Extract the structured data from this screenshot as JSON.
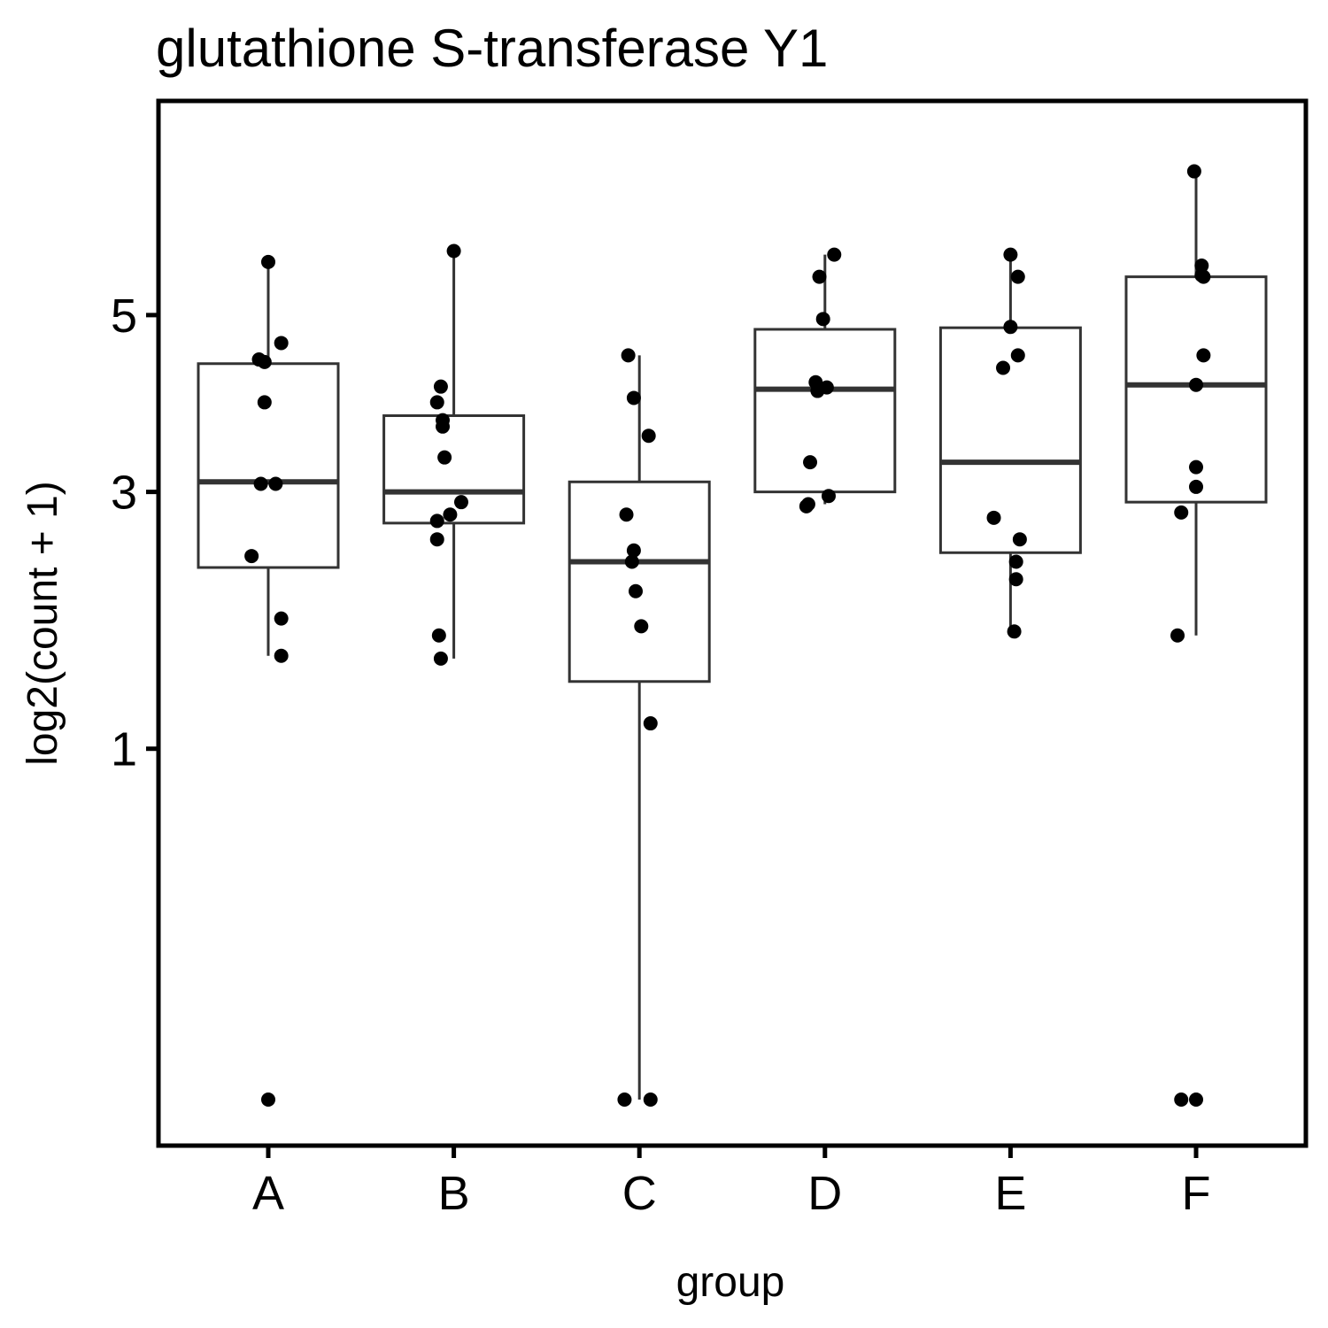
{
  "chart_data": {
    "type": "boxplot",
    "title": "glutathione S-transferase Y1",
    "xlabel": "group",
    "ylabel": "log2(count + 1)",
    "y_scale": "sqrt",
    "ylim": [
      0,
      7.4
    ],
    "y_ticks": [
      1,
      3,
      5
    ],
    "grid": false,
    "legend": "none",
    "categories": [
      "A",
      "B",
      "C",
      "D",
      "E",
      "F"
    ],
    "boxes": [
      {
        "group": "A",
        "whisker_low": 1.6,
        "q1": 2.3,
        "median": 3.1,
        "q3": 4.4,
        "whisker_high": 5.7
      },
      {
        "group": "B",
        "whisker_low": 1.58,
        "q1": 2.7,
        "median": 3.0,
        "q3": 3.8,
        "whisker_high": 5.85
      },
      {
        "group": "C",
        "whisker_low": 0.0,
        "q1": 1.42,
        "median": 2.35,
        "q3": 3.1,
        "whisker_high": 4.5
      },
      {
        "group": "D",
        "whisker_low": 2.88,
        "q1": 3.0,
        "median": 4.1,
        "q3": 4.82,
        "whisker_high": 5.8
      },
      {
        "group": "E",
        "whisker_low": 1.8,
        "q1": 2.43,
        "median": 3.3,
        "q3": 4.84,
        "whisker_high": 5.8
      },
      {
        "group": "F",
        "whisker_low": 1.75,
        "q1": 2.9,
        "median": 4.15,
        "q3": 5.5,
        "whisker_high": 7.0
      }
    ],
    "points": [
      {
        "group": "A",
        "offset": 0.0,
        "y": 5.7
      },
      {
        "group": "A",
        "offset": 0.07,
        "y": 4.65
      },
      {
        "group": "A",
        "offset": -0.05,
        "y": 4.45
      },
      {
        "group": "A",
        "offset": -0.02,
        "y": 4.42
      },
      {
        "group": "A",
        "offset": -0.02,
        "y": 3.95
      },
      {
        "group": "A",
        "offset": -0.04,
        "y": 3.08
      },
      {
        "group": "A",
        "offset": 0.04,
        "y": 3.08
      },
      {
        "group": "A",
        "offset": -0.09,
        "y": 2.4
      },
      {
        "group": "A",
        "offset": 0.07,
        "y": 1.88
      },
      {
        "group": "A",
        "offset": 0.07,
        "y": 1.6
      },
      {
        "group": "A",
        "offset": 0.0,
        "y": 0.0
      },
      {
        "group": "B",
        "offset": -0.09,
        "y": 3.95
      },
      {
        "group": "B",
        "offset": -0.07,
        "y": 4.13
      },
      {
        "group": "B",
        "offset": -0.06,
        "y": 3.75
      },
      {
        "group": "B",
        "offset": -0.06,
        "y": 3.68
      },
      {
        "group": "B",
        "offset": -0.05,
        "y": 3.35
      },
      {
        "group": "B",
        "offset": 0.04,
        "y": 2.9
      },
      {
        "group": "B",
        "offset": -0.02,
        "y": 2.78
      },
      {
        "group": "B",
        "offset": -0.09,
        "y": 2.72
      },
      {
        "group": "B",
        "offset": -0.09,
        "y": 2.55
      },
      {
        "group": "B",
        "offset": -0.08,
        "y": 1.75
      },
      {
        "group": "B",
        "offset": -0.07,
        "y": 1.58
      },
      {
        "group": "B",
        "offset": 0.0,
        "y": 5.85
      },
      {
        "group": "C",
        "offset": -0.06,
        "y": 4.5
      },
      {
        "group": "C",
        "offset": -0.03,
        "y": 4.0
      },
      {
        "group": "C",
        "offset": 0.05,
        "y": 3.58
      },
      {
        "group": "C",
        "offset": -0.07,
        "y": 2.78
      },
      {
        "group": "C",
        "offset": -0.03,
        "y": 2.45
      },
      {
        "group": "C",
        "offset": -0.04,
        "y": 2.35
      },
      {
        "group": "C",
        "offset": -0.02,
        "y": 2.1
      },
      {
        "group": "C",
        "offset": 0.01,
        "y": 1.82
      },
      {
        "group": "C",
        "offset": 0.06,
        "y": 1.15
      },
      {
        "group": "C",
        "offset": -0.08,
        "y": 0.0
      },
      {
        "group": "C",
        "offset": 0.06,
        "y": 0.0
      },
      {
        "group": "D",
        "offset": 0.05,
        "y": 5.8
      },
      {
        "group": "D",
        "offset": -0.03,
        "y": 5.5
      },
      {
        "group": "D",
        "offset": -0.01,
        "y": 4.95
      },
      {
        "group": "D",
        "offset": -0.05,
        "y": 4.18
      },
      {
        "group": "D",
        "offset": 0.01,
        "y": 4.12
      },
      {
        "group": "D",
        "offset": -0.04,
        "y": 4.08
      },
      {
        "group": "D",
        "offset": -0.08,
        "y": 3.3
      },
      {
        "group": "D",
        "offset": 0.02,
        "y": 2.96
      },
      {
        "group": "D",
        "offset": -0.09,
        "y": 2.88
      },
      {
        "group": "D",
        "offset": -0.1,
        "y": 2.86
      },
      {
        "group": "E",
        "offset": 0.0,
        "y": 5.8
      },
      {
        "group": "E",
        "offset": 0.04,
        "y": 5.5
      },
      {
        "group": "E",
        "offset": 0.0,
        "y": 4.85
      },
      {
        "group": "E",
        "offset": 0.04,
        "y": 4.5
      },
      {
        "group": "E",
        "offset": -0.04,
        "y": 4.35
      },
      {
        "group": "E",
        "offset": -0.09,
        "y": 2.75
      },
      {
        "group": "E",
        "offset": 0.05,
        "y": 2.55
      },
      {
        "group": "E",
        "offset": 0.03,
        "y": 2.35
      },
      {
        "group": "E",
        "offset": 0.03,
        "y": 2.2
      },
      {
        "group": "E",
        "offset": 0.02,
        "y": 1.78
      },
      {
        "group": "F",
        "offset": -0.01,
        "y": 7.0
      },
      {
        "group": "F",
        "offset": 0.03,
        "y": 5.65
      },
      {
        "group": "F",
        "offset": 0.03,
        "y": 5.52
      },
      {
        "group": "F",
        "offset": 0.04,
        "y": 5.5
      },
      {
        "group": "F",
        "offset": 0.04,
        "y": 4.5
      },
      {
        "group": "F",
        "offset": 0.0,
        "y": 4.15
      },
      {
        "group": "F",
        "offset": 0.0,
        "y": 3.25
      },
      {
        "group": "F",
        "offset": 0.0,
        "y": 3.05
      },
      {
        "group": "F",
        "offset": -0.08,
        "y": 2.8
      },
      {
        "group": "F",
        "offset": -0.1,
        "y": 1.75
      },
      {
        "group": "F",
        "offset": -0.08,
        "y": 0.0
      },
      {
        "group": "F",
        "offset": 0.0,
        "y": 0.0
      }
    ],
    "colors": {
      "box": "#333333",
      "point": "#000000",
      "frame": "#000000"
    }
  }
}
